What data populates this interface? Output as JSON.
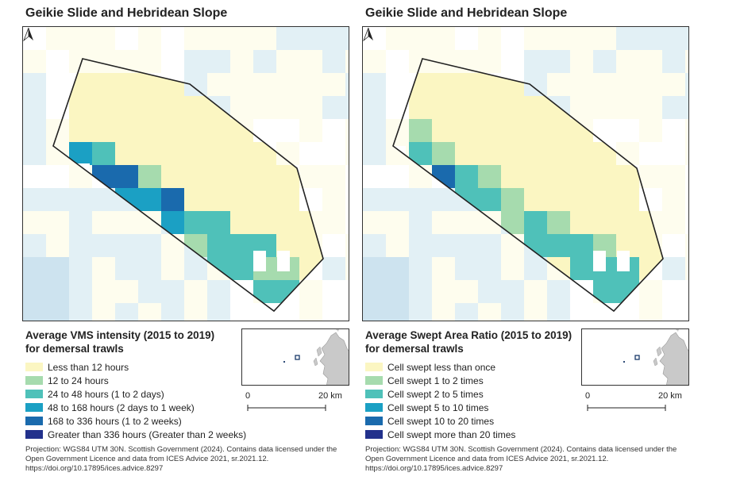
{
  "colors": {
    "c1": "#fbf6c2",
    "c2": "#a6dbae",
    "c3": "#4fc1b9",
    "c4": "#1ba0c4",
    "c5": "#1a6aad",
    "c6": "#22318c",
    "bg_pale": "#fdfce8",
    "bg_blue": "#d8ebf1",
    "bg_blue2": "#bcd9ea",
    "boundary": "#222222"
  },
  "left": {
    "title": "Geikie Slide and Hebridean Slope",
    "legend_title_1": "Average VMS intensity (2015 to 2019)",
    "legend_title_2": "for demersal trawls",
    "legend": [
      {
        "label": "Less than 12 hours",
        "color": "#fbf6c2"
      },
      {
        "label": "12 to 24 hours",
        "color": "#a6dbae"
      },
      {
        "label": "24 to 48 hours (1 to 2 days)",
        "color": "#4fc1b9"
      },
      {
        "label": "48 to 168 hours (2 days to 1 week)",
        "color": "#1ba0c4"
      },
      {
        "label": "168 to 336 hours (1 to 2 weeks)",
        "color": "#1a6aad"
      },
      {
        "label": "Greater than 336 hours (Greater than 2 weeks)",
        "color": "#22318c"
      }
    ],
    "scale_0": "0",
    "scale_1": "20 km",
    "credit_1": "Projection: WGS84 UTM 30N. Scottish Government (2024). Contains data licensed under the",
    "credit_2": "Open Government Licence and data from ICES Advice 2021, sr.2021.12.",
    "credit_3": "https://doi.org/10.17895/ices.advice.8297"
  },
  "right": {
    "title": "Geikie Slide and Hebridean Slope",
    "legend_title_1": "Average Swept Area Ratio (2015 to 2019)",
    "legend_title_2": "for demersal trawls",
    "legend": [
      {
        "label": "Cell swept less than once",
        "color": "#fbf6c2"
      },
      {
        "label": "Cell swept 1 to 2 times",
        "color": "#a6dbae"
      },
      {
        "label": "Cell swept 2 to 5 times",
        "color": "#4fc1b9"
      },
      {
        "label": "Cell swept 5 to 10 times",
        "color": "#1ba0c4"
      },
      {
        "label": "Cell swept 10 to 20 times",
        "color": "#1a6aad"
      },
      {
        "label": "Cell swept more than 20 times",
        "color": "#22318c"
      }
    ],
    "scale_0": "0",
    "scale_1": "20 km",
    "credit_1": "Projection: WGS84 UTM 30N. Scottish Government (2024). Contains data licensed under the",
    "credit_2": "Open Government Licence and data from ICES Advice 2021, sr.2021.12.",
    "credit_3": "https://doi.org/10.17895/ices.advice.8297"
  }
}
